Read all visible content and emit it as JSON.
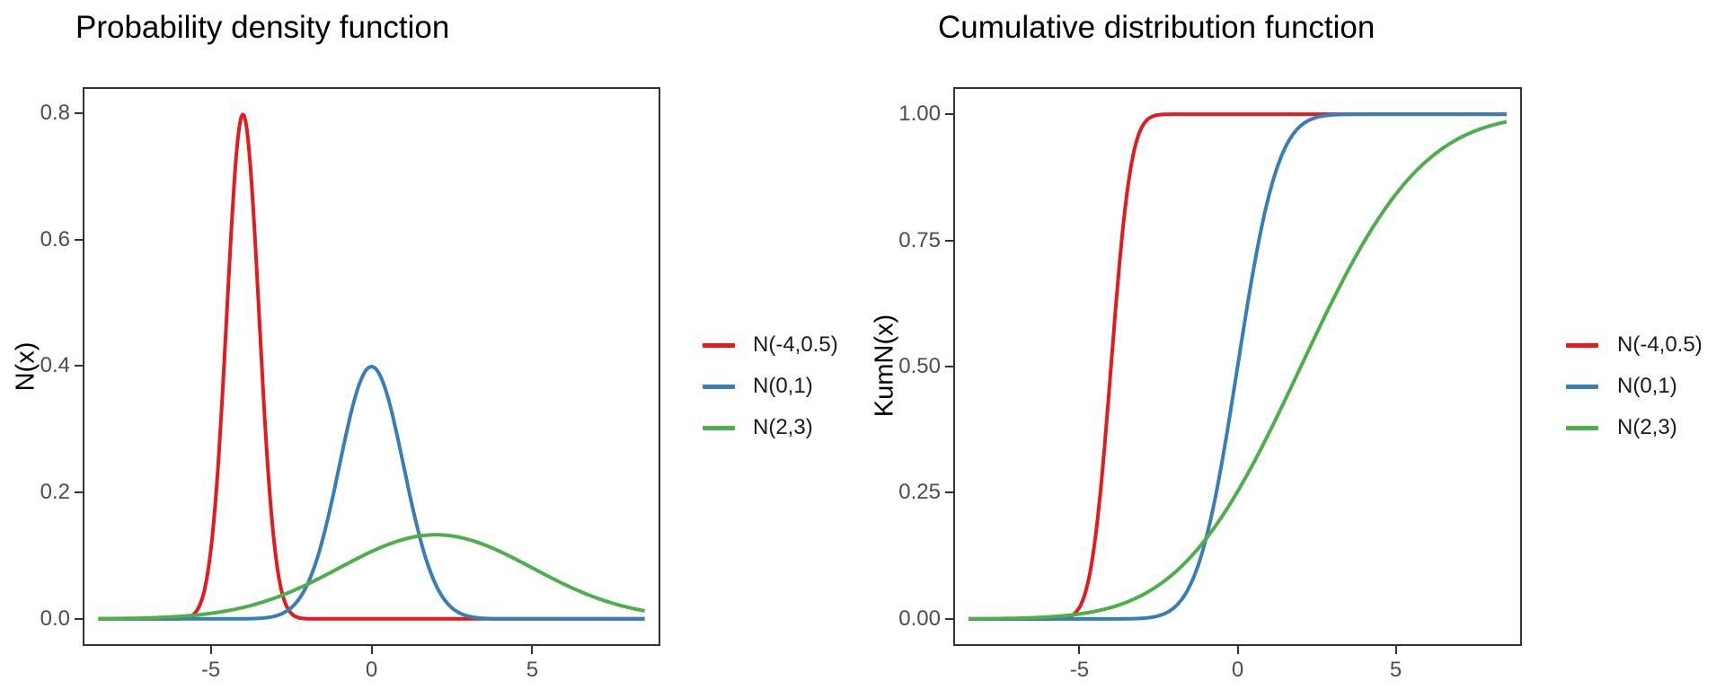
{
  "page": {
    "background": "#ffffff"
  },
  "palette": {
    "red": "#E41A1C",
    "blue": "#377EB8",
    "green": "#4DAF4A",
    "axis_line": "#333333",
    "tick_label": "#4d4d4d",
    "title_color": "#000000"
  },
  "legend": {
    "position": "right",
    "items": [
      {
        "label": "N(-4,0.5)",
        "color": "#E41A1C"
      },
      {
        "label": "N(0,1)",
        "color": "#377EB8"
      },
      {
        "label": "N(2,3)",
        "color": "#4DAF4A"
      }
    ]
  },
  "chart_data": [
    {
      "type": "line",
      "function": "normal_pdf",
      "title": "Probability density function",
      "xlabel": "",
      "ylabel": "N(x)",
      "x_ticks": [
        "-5",
        "0",
        "5"
      ],
      "x_tick_values": [
        -5,
        0,
        5
      ],
      "y_ticks": [
        "0.0",
        "0.2",
        "0.4",
        "0.6",
        "0.8"
      ],
      "y_tick_values": [
        0.0,
        0.2,
        0.4,
        0.6,
        0.8
      ],
      "xlim": [
        -8.93,
        8.93
      ],
      "ylim": [
        -0.04,
        0.838
      ],
      "x_data_range": [
        -8.5,
        8.5
      ],
      "grid": false,
      "panel_border": true,
      "legend_position": "right",
      "series": [
        {
          "name": "N(-4,0.5)",
          "mean": -4,
          "sd": 0.5,
          "color": "#E41A1C",
          "peak_x": -4,
          "peak_y": 0.798
        },
        {
          "name": "N(0,1)",
          "mean": 0,
          "sd": 1,
          "color": "#377EB8",
          "peak_x": 0,
          "peak_y": 0.399
        },
        {
          "name": "N(2,3)",
          "mean": 2,
          "sd": 3,
          "color": "#4DAF4A",
          "peak_x": 2,
          "peak_y": 0.133
        }
      ]
    },
    {
      "type": "line",
      "function": "normal_cdf",
      "title": "Cumulative distribution function",
      "xlabel": "",
      "ylabel": "KumN(x)",
      "x_ticks": [
        "-5",
        "0",
        "5"
      ],
      "x_tick_values": [
        -5,
        0,
        5
      ],
      "y_ticks": [
        "0.00",
        "0.25",
        "0.50",
        "0.75",
        "1.00"
      ],
      "y_tick_values": [
        0.0,
        0.25,
        0.5,
        0.75,
        1.0
      ],
      "xlim": [
        -8.93,
        8.93
      ],
      "ylim": [
        -0.05,
        1.05
      ],
      "x_data_range": [
        -8.5,
        8.5
      ],
      "grid": false,
      "panel_border": true,
      "legend_position": "right",
      "series": [
        {
          "name": "N(-4,0.5)",
          "mean": -4,
          "sd": 0.5,
          "color": "#E41A1C",
          "value_at_mean": 0.5,
          "end_y": 1.0
        },
        {
          "name": "N(0,1)",
          "mean": 0,
          "sd": 1,
          "color": "#377EB8",
          "value_at_mean": 0.5,
          "end_y": 1.0
        },
        {
          "name": "N(2,3)",
          "mean": 2,
          "sd": 3,
          "color": "#4DAF4A",
          "value_at_mean": 0.5,
          "end_y": 0.985
        }
      ]
    }
  ]
}
